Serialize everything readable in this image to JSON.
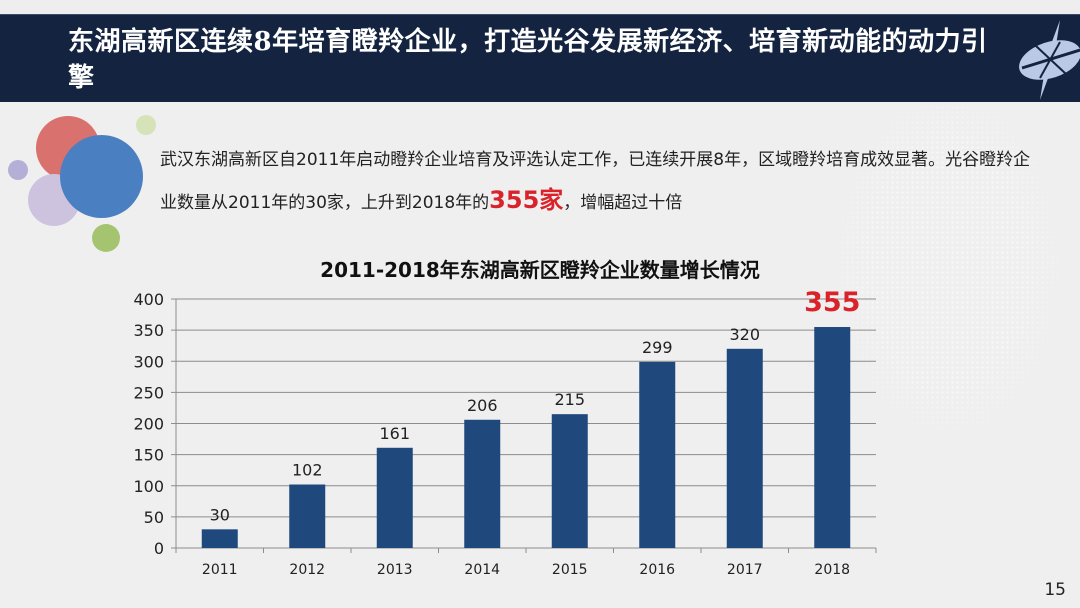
{
  "header": {
    "title": "东湖高新区连续8年培育瞪羚企业，打造光谷发展新经济、培育新动能的动力引擎",
    "logo_icon": "compass-star-logo-icon"
  },
  "intro": {
    "text_before": "武汉东湖高新区自2011年启动瞪羚企业培育及评选认定工作，已连续开展8年，区域瞪羚培育成效显著。光谷瞪羚企业数量从2011年的30家，上升到2018年的",
    "highlight": "355家",
    "text_after": "，增幅超过十倍",
    "highlight_color": "#d9222a"
  },
  "colors": {
    "header_bg": "#142340",
    "bar": "#1f497d",
    "highlight": "#d9222a",
    "bubble_red": "#d9716e",
    "bubble_blue": "#4a7fc1",
    "bubble_lilac": "#c8bedd",
    "bubble_green": "#a4c46f",
    "bubble_lightgreen": "#d6e3b8",
    "bubble_violet": "#b4afd6"
  },
  "chart_data": {
    "type": "bar",
    "title": "2011-2018年东湖高新区瞪羚企业数量增长情况",
    "categories": [
      "2011",
      "2012",
      "2013",
      "2014",
      "2015",
      "2016",
      "2017",
      "2018"
    ],
    "values": [
      30,
      102,
      161,
      206,
      215,
      299,
      320,
      355
    ],
    "data_labels": [
      "30",
      "102",
      "161",
      "206",
      "215",
      "299",
      "320",
      "355"
    ],
    "highlighted_label": {
      "index": 7,
      "color": "#d9222a"
    },
    "xlabel": "",
    "ylabel": "",
    "ylim": [
      0,
      400
    ],
    "yticks": [
      0,
      50,
      100,
      150,
      200,
      250,
      300,
      350,
      400
    ],
    "grid": true,
    "legend": "none"
  },
  "footer": {
    "page_number": "15"
  }
}
